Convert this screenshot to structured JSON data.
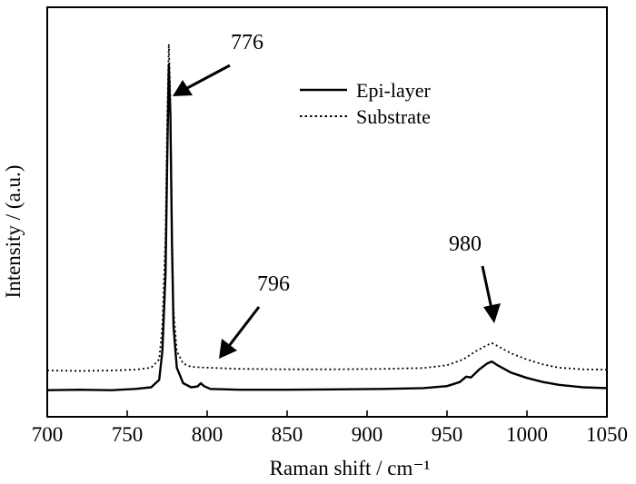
{
  "chart_data": {
    "type": "line",
    "title": "",
    "xlabel": "Raman shift / cm⁻¹",
    "ylabel": "Intensity / (a.u.)",
    "xlim": [
      700,
      1050
    ],
    "ylim": [
      0,
      1
    ],
    "x_ticks": [
      700,
      750,
      800,
      850,
      900,
      950,
      1000,
      1050
    ],
    "x_tick_labels": [
      "700",
      "750",
      "800",
      "850",
      "900",
      "950",
      "1000",
      "1050"
    ],
    "y_tick_labels": [],
    "grid": false,
    "legend_position": "top-right",
    "series": [
      {
        "name": "Epi-layer",
        "line_style": "solid",
        "color": "#000000",
        "points": [
          [
            700,
            0.065
          ],
          [
            720,
            0.066
          ],
          [
            740,
            0.065
          ],
          [
            755,
            0.068
          ],
          [
            765,
            0.072
          ],
          [
            770,
            0.09
          ],
          [
            772,
            0.16
          ],
          [
            774,
            0.35
          ],
          [
            775,
            0.62
          ],
          [
            776,
            0.86
          ],
          [
            777,
            0.74
          ],
          [
            778,
            0.42
          ],
          [
            779,
            0.22
          ],
          [
            781,
            0.12
          ],
          [
            785,
            0.082
          ],
          [
            790,
            0.072
          ],
          [
            794,
            0.074
          ],
          [
            796,
            0.082
          ],
          [
            798,
            0.075
          ],
          [
            802,
            0.068
          ],
          [
            820,
            0.066
          ],
          [
            850,
            0.066
          ],
          [
            880,
            0.067
          ],
          [
            910,
            0.068
          ],
          [
            935,
            0.07
          ],
          [
            950,
            0.075
          ],
          [
            958,
            0.085
          ],
          [
            962,
            0.098
          ],
          [
            965,
            0.096
          ],
          [
            970,
            0.115
          ],
          [
            975,
            0.13
          ],
          [
            978,
            0.135
          ],
          [
            982,
            0.125
          ],
          [
            990,
            0.108
          ],
          [
            1000,
            0.095
          ],
          [
            1010,
            0.085
          ],
          [
            1020,
            0.078
          ],
          [
            1035,
            0.072
          ],
          [
            1050,
            0.07
          ]
        ]
      },
      {
        "name": "Substrate",
        "line_style": "dotted",
        "color": "#000000",
        "points": [
          [
            700,
            0.113
          ],
          [
            720,
            0.112
          ],
          [
            740,
            0.113
          ],
          [
            755,
            0.115
          ],
          [
            765,
            0.12
          ],
          [
            770,
            0.14
          ],
          [
            772,
            0.22
          ],
          [
            774,
            0.44
          ],
          [
            775,
            0.72
          ],
          [
            776,
            0.91
          ],
          [
            777,
            0.78
          ],
          [
            778,
            0.46
          ],
          [
            779,
            0.26
          ],
          [
            781,
            0.16
          ],
          [
            785,
            0.13
          ],
          [
            790,
            0.122
          ],
          [
            800,
            0.12
          ],
          [
            820,
            0.117
          ],
          [
            850,
            0.116
          ],
          [
            880,
            0.116
          ],
          [
            910,
            0.117
          ],
          [
            935,
            0.119
          ],
          [
            950,
            0.126
          ],
          [
            960,
            0.14
          ],
          [
            968,
            0.16
          ],
          [
            975,
            0.175
          ],
          [
            978,
            0.18
          ],
          [
            983,
            0.17
          ],
          [
            990,
            0.155
          ],
          [
            1000,
            0.14
          ],
          [
            1010,
            0.128
          ],
          [
            1020,
            0.12
          ],
          [
            1035,
            0.116
          ],
          [
            1050,
            0.115
          ]
        ]
      }
    ],
    "annotations": [
      {
        "text": "776",
        "peak_x": 776
      },
      {
        "text": "796",
        "peak_x": 796
      },
      {
        "text": "980",
        "peak_x": 980
      }
    ]
  }
}
